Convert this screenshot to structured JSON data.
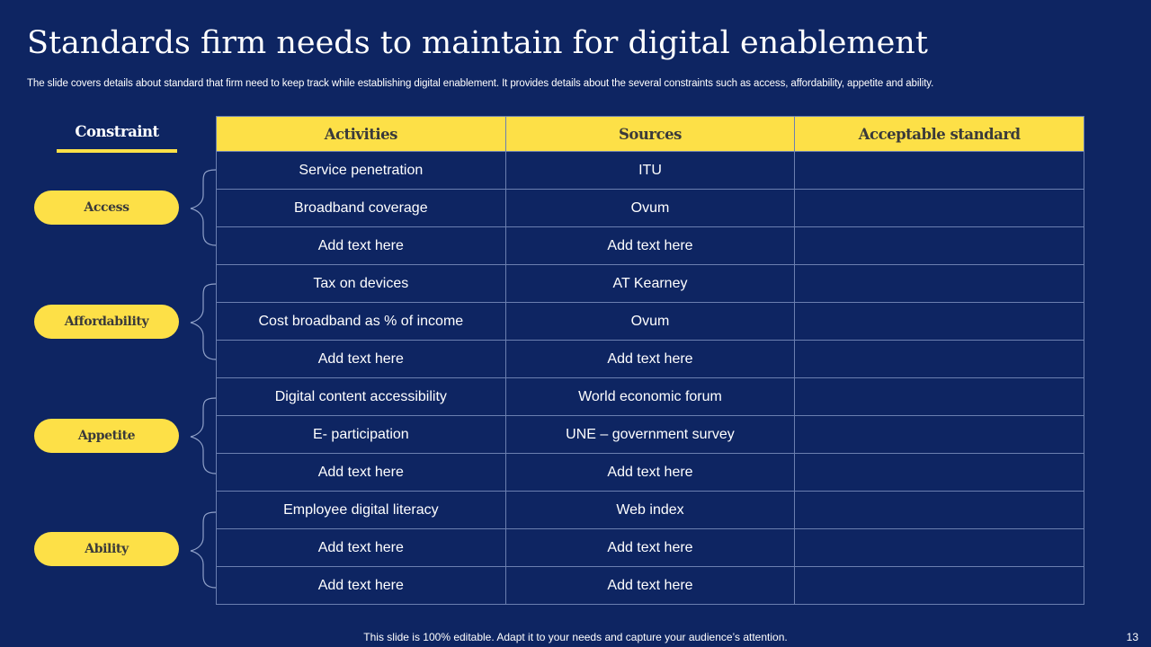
{
  "slide": {
    "title": "Standards firm needs to maintain for digital enablement",
    "subtitle": "The slide covers details about standard that firm need to keep track while establishing digital enablement. It provides details about the several constraints such as access, affordability, appetite and ability.",
    "constraint_heading": "Constraint",
    "constraints": [
      "Access",
      "Affordability",
      "Appetite",
      "Ability"
    ],
    "accent_color": "#fde047",
    "background_color": "#0e2562",
    "footer": "This slide is 100% editable. Adapt it to your needs and capture your audience’s attention.",
    "page_number": "13"
  },
  "table": {
    "headers": [
      "Activities",
      "Sources",
      "Acceptable standard"
    ],
    "rows": [
      [
        "Service penetration",
        "ITU",
        ""
      ],
      [
        "Broadband coverage",
        "Ovum",
        ""
      ],
      [
        "Add text here",
        "Add text here",
        ""
      ],
      [
        "Tax on devices",
        "AT Kearney",
        ""
      ],
      [
        "Cost broadband as % of income",
        "Ovum",
        ""
      ],
      [
        "Add text here",
        "Add text here",
        ""
      ],
      [
        "Digital content accessibility",
        "World economic forum",
        ""
      ],
      [
        "E- participation",
        "UNE – government  survey",
        ""
      ],
      [
        "Add text here",
        "Add text here",
        ""
      ],
      [
        "Employee digital literacy",
        "Web index",
        ""
      ],
      [
        "Add text here",
        "Add text here",
        ""
      ],
      [
        "Add text here",
        "Add text here",
        ""
      ]
    ]
  }
}
